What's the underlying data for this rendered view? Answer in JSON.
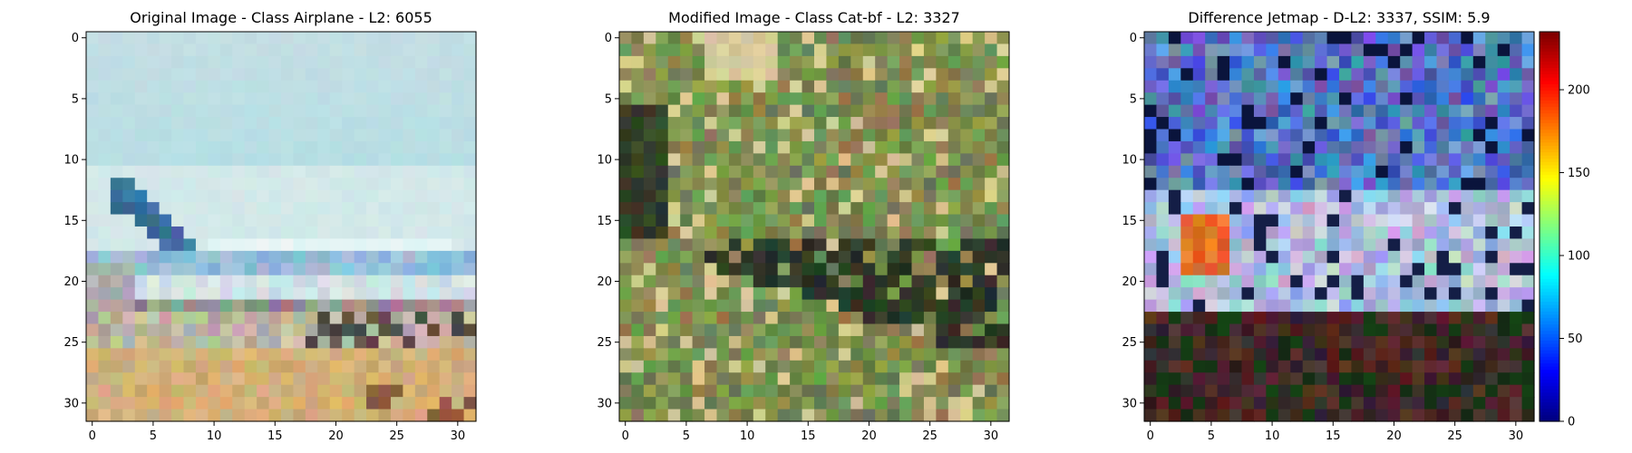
{
  "chart_data": [
    {
      "type": "heatmap",
      "title": "Original Image - Class Airplane - L2: 6055",
      "title_color": "#000000",
      "xticks": [
        "0",
        "5",
        "10",
        "15",
        "20",
        "25",
        "30"
      ],
      "yticks": [
        "0",
        "5",
        "10",
        "15",
        "20",
        "25",
        "30"
      ],
      "xlim": [
        -0.5,
        31.5
      ],
      "ylim": [
        31.5,
        -0.5
      ],
      "grid": false,
      "content": "32x32 RGB photo: pale blue sky, white airliner with dark blue tail fin on the left, tan/brown ground in bottom rows"
    },
    {
      "type": "heatmap",
      "title": "Modified Image - Class Cat-bf - L2: 3327",
      "title_color": "#ff0000",
      "xticks": [
        "0",
        "5",
        "10",
        "15",
        "20",
        "25",
        "30"
      ],
      "yticks": [
        "0",
        "5",
        "10",
        "15",
        "20",
        "25",
        "30"
      ],
      "xlim": [
        -0.5,
        31.5
      ],
      "ylim": [
        31.5,
        -0.5
      ],
      "grid": false,
      "content": "32x32 RGB photo: green foliage with beige highlights, dark green/black animal shape across the middle"
    },
    {
      "type": "heatmap",
      "title": "Difference Jetmap - D-L2: 3337, SSIM: 5.9",
      "title_color": "#000000",
      "xticks": [
        "0",
        "5",
        "10",
        "15",
        "20",
        "25",
        "30"
      ],
      "yticks": [
        "0",
        "5",
        "10",
        "15",
        "20",
        "25",
        "30"
      ],
      "xlim": [
        -0.5,
        31.5
      ],
      "ylim": [
        31.5,
        -0.5
      ],
      "grid": false,
      "colormap": "jet",
      "colorbar": {
        "min": 0,
        "max": 235,
        "ticks": [
          "0",
          "50",
          "100",
          "150",
          "200"
        ]
      },
      "content": "32x32 difference image: blue/dark blue top region, white-blue airplane band in rows 17-22, dark brown/maroon bottom region, orange-red patch near x=5,y=17"
    }
  ]
}
